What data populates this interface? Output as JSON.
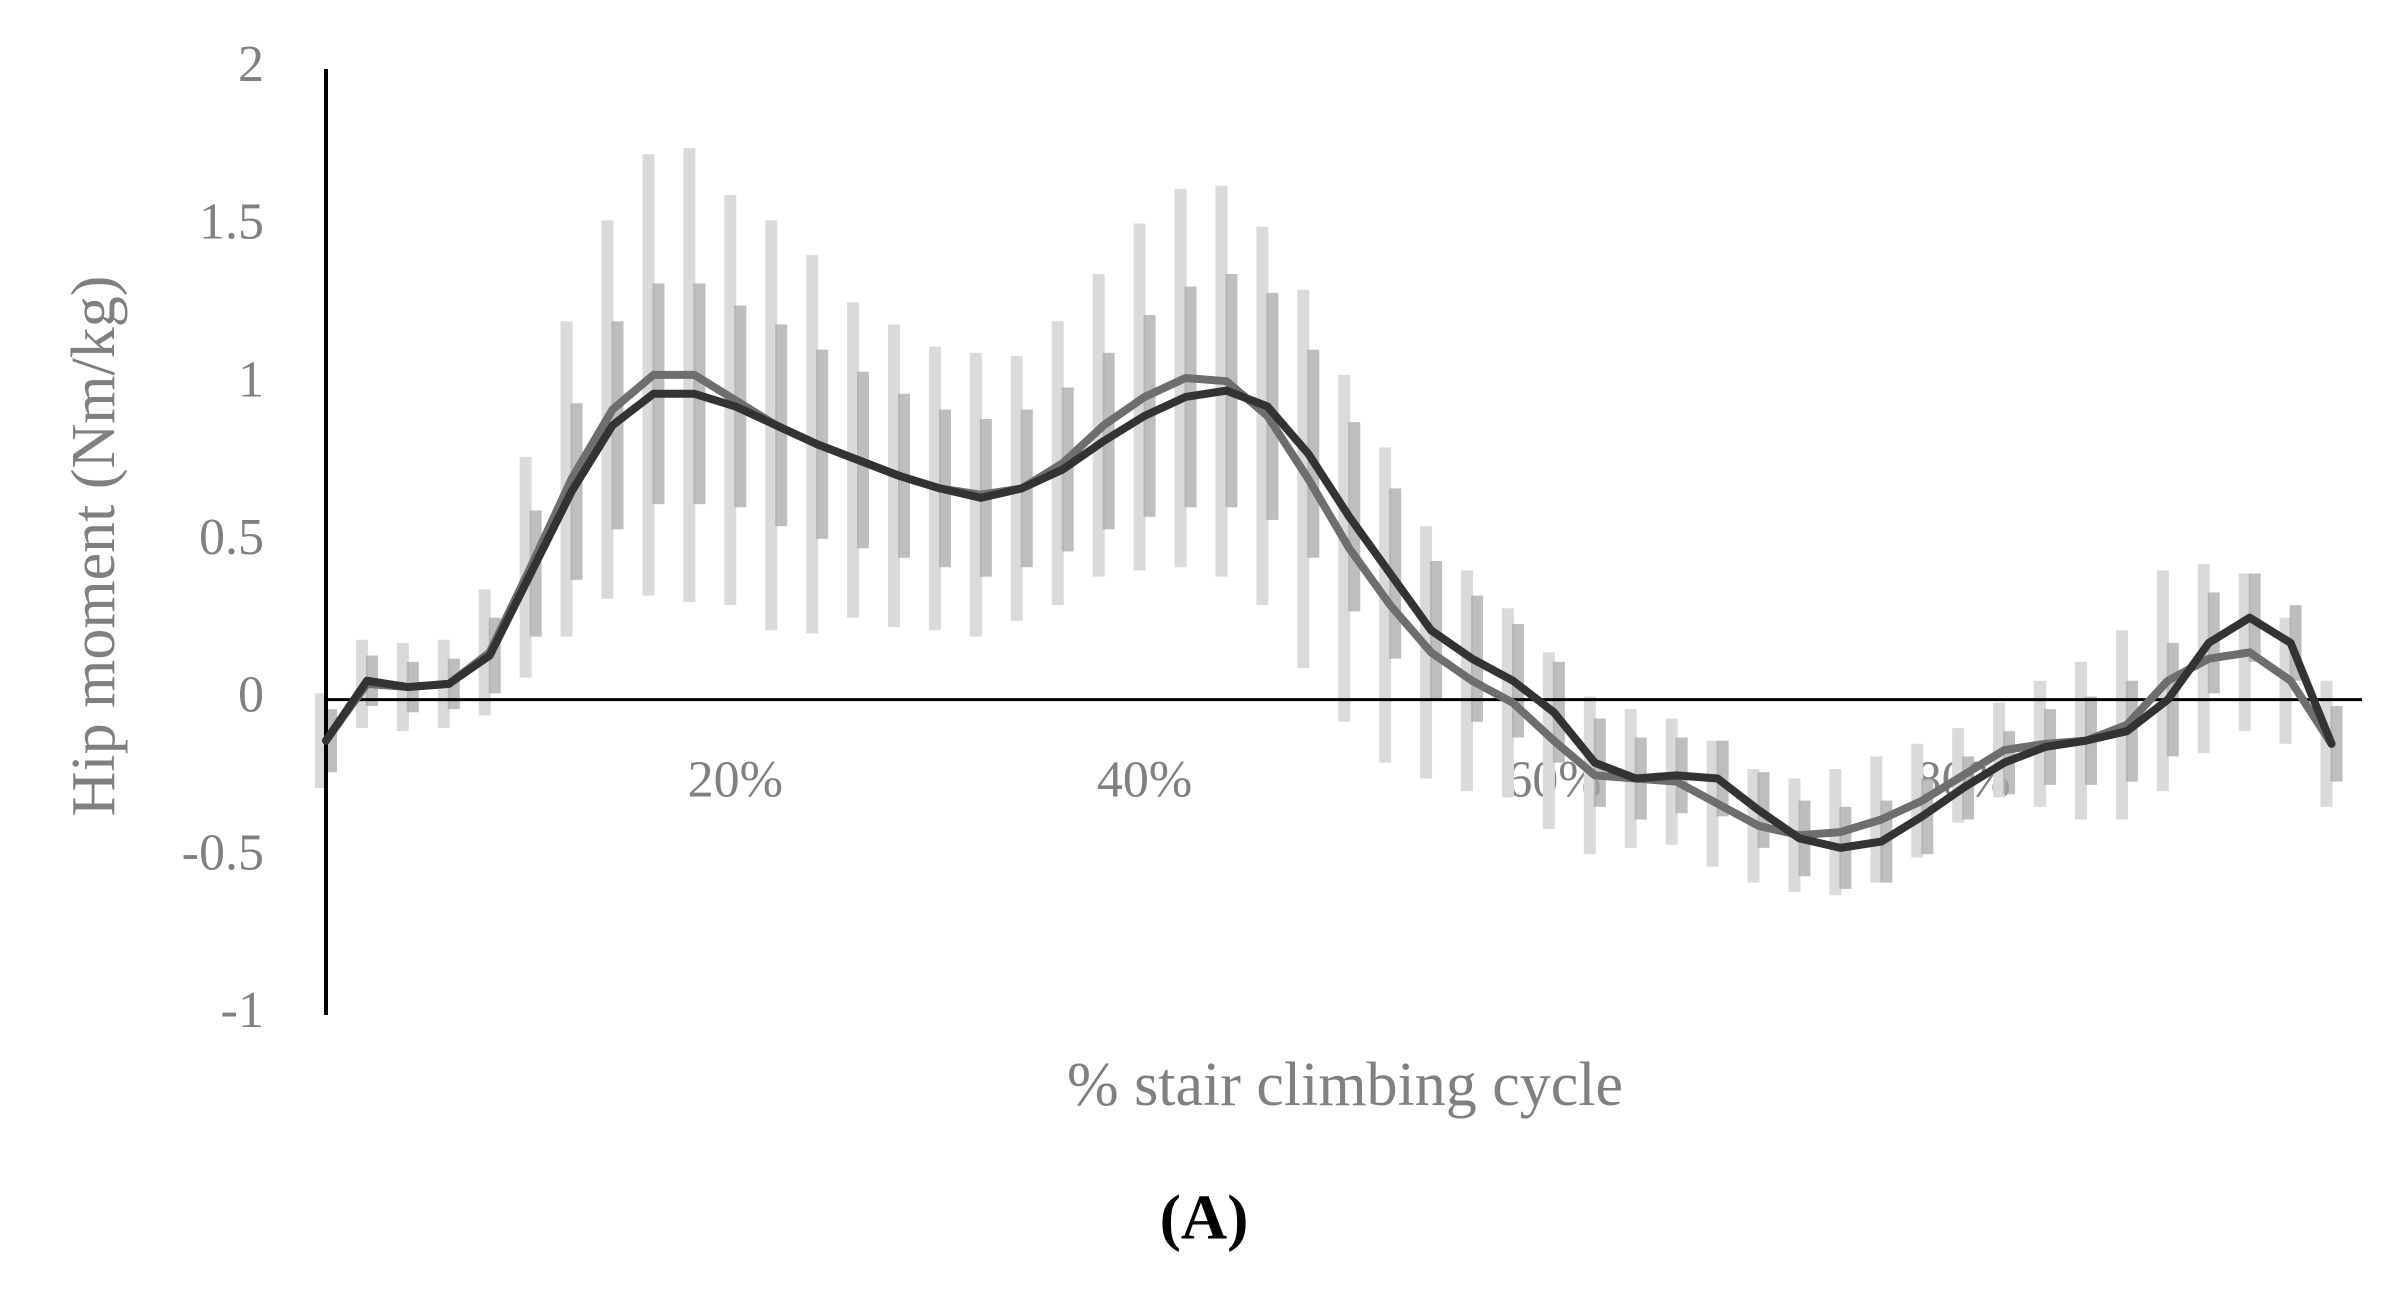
{
  "chart_data": {
    "type": "line",
    "ylabel": "Hip moment (Nm/kg)",
    "xlabel": "% stair climbing cycle",
    "panel_label": "(A)",
    "x": [
      0,
      2,
      4,
      6,
      8,
      10,
      12,
      14,
      16,
      18,
      20,
      22,
      24,
      26,
      28,
      30,
      32,
      34,
      36,
      38,
      40,
      42,
      44,
      46,
      48,
      50,
      52,
      54,
      56,
      58,
      60,
      62,
      64,
      66,
      68,
      70,
      72,
      74,
      76,
      78,
      80,
      82,
      84,
      86,
      88,
      90,
      92,
      94,
      96,
      98
    ],
    "series": [
      {
        "color": "#6e6e6e",
        "error_color": "#dadada",
        "values": [
          -0.13,
          0.05,
          0.04,
          0.05,
          0.15,
          0.42,
          0.7,
          0.92,
          1.03,
          1.03,
          0.95,
          0.87,
          0.81,
          0.76,
          0.71,
          0.67,
          0.65,
          0.67,
          0.75,
          0.87,
          0.96,
          1.02,
          1.01,
          0.9,
          0.7,
          0.48,
          0.3,
          0.15,
          0.06,
          -0.01,
          -0.13,
          -0.24,
          -0.25,
          -0.26,
          -0.33,
          -0.4,
          -0.43,
          -0.42,
          -0.38,
          -0.32,
          -0.24,
          -0.16,
          -0.14,
          -0.13,
          -0.08,
          0.06,
          0.13,
          0.15,
          0.06,
          -0.14
        ],
        "errors": [
          0.15,
          0.14,
          0.14,
          0.14,
          0.2,
          0.35,
          0.5,
          0.6,
          0.7,
          0.72,
          0.65,
          0.65,
          0.6,
          0.5,
          0.48,
          0.45,
          0.45,
          0.42,
          0.45,
          0.48,
          0.55,
          0.6,
          0.62,
          0.6,
          0.6,
          0.55,
          0.5,
          0.4,
          0.35,
          0.3,
          0.28,
          0.25,
          0.22,
          0.2,
          0.2,
          0.18,
          0.18,
          0.2,
          0.2,
          0.18,
          0.15,
          0.15,
          0.2,
          0.25,
          0.3,
          0.35,
          0.3,
          0.25,
          0.2,
          0.2
        ]
      },
      {
        "color": "#333333",
        "error_color": "#a8a8a8",
        "values": [
          -0.13,
          0.06,
          0.04,
          0.05,
          0.14,
          0.4,
          0.66,
          0.87,
          0.97,
          0.97,
          0.93,
          0.87,
          0.81,
          0.76,
          0.71,
          0.67,
          0.64,
          0.67,
          0.73,
          0.82,
          0.9,
          0.96,
          0.98,
          0.93,
          0.78,
          0.58,
          0.4,
          0.22,
          0.13,
          0.06,
          -0.04,
          -0.2,
          -0.25,
          -0.24,
          -0.25,
          -0.35,
          -0.44,
          -0.47,
          -0.45,
          -0.37,
          -0.28,
          -0.2,
          -0.15,
          -0.13,
          -0.1,
          0.0,
          0.18,
          0.26,
          0.18,
          -0.14
        ],
        "errors": [
          0.1,
          0.08,
          0.08,
          0.08,
          0.12,
          0.2,
          0.28,
          0.33,
          0.35,
          0.35,
          0.32,
          0.32,
          0.3,
          0.28,
          0.26,
          0.25,
          0.25,
          0.25,
          0.26,
          0.28,
          0.32,
          0.35,
          0.37,
          0.36,
          0.33,
          0.3,
          0.27,
          0.22,
          0.2,
          0.18,
          0.16,
          0.14,
          0.13,
          0.12,
          0.12,
          0.12,
          0.12,
          0.13,
          0.13,
          0.12,
          0.1,
          0.1,
          0.12,
          0.14,
          0.16,
          0.18,
          0.16,
          0.14,
          0.12,
          0.12
        ]
      }
    ],
    "xlim": [
      0,
      99
    ],
    "xticks": [
      {
        "value": 20,
        "label": "20%"
      },
      {
        "value": 40,
        "label": "40%"
      },
      {
        "value": 60,
        "label": "60%"
      },
      {
        "value": 80,
        "label": "80%"
      }
    ],
    "ylim": [
      -1,
      2
    ],
    "yticks": [
      2,
      1.5,
      1,
      0.5,
      0,
      -0.5,
      -1
    ],
    "grid": false
  }
}
